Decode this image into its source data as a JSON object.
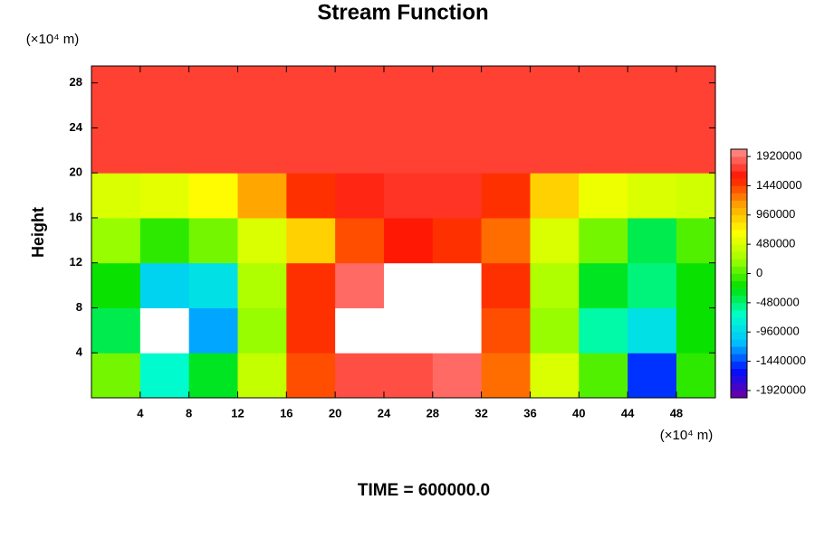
{
  "chart_data": {
    "type": "contour",
    "title": "Stream Function",
    "ylabel": "Height",
    "x_unit": "(×10⁴ m)",
    "y_unit": "(×10⁴ m)",
    "footer": "TIME = 600000.0",
    "xlim": [
      0,
      51.2
    ],
    "ylim": [
      0,
      29.5
    ],
    "xticks": [
      4,
      8,
      12,
      16,
      20,
      24,
      28,
      32,
      36,
      40,
      44,
      48
    ],
    "yticks": [
      4,
      8,
      12,
      16,
      20,
      24,
      28
    ],
    "x": [
      2,
      6,
      10,
      14,
      18,
      22,
      26,
      30,
      34,
      38,
      42,
      46,
      50
    ],
    "y": [
      2,
      6,
      10,
      14,
      18,
      22,
      26,
      30
    ],
    "z": [
      [
        100000,
        -700000,
        -300000,
        400000,
        1400000,
        1800000,
        1800000,
        1900000,
        1300000,
        500000,
        0,
        -1500000,
        -100000
      ],
      [
        -400000,
        -2300000,
        -1200000,
        200000,
        1500000,
        2500000,
        2400000,
        2500000,
        1400000,
        200000,
        -600000,
        -900000,
        -200000
      ],
      [
        -200000,
        -1000000,
        -900000,
        300000,
        1500000,
        1900000,
        2300000,
        2200000,
        1500000,
        300000,
        -300000,
        -500000,
        -200000
      ],
      [
        200000,
        -100000,
        100000,
        500000,
        900000,
        1400000,
        1600000,
        1500000,
        1300000,
        500000,
        100000,
        -400000,
        0
      ],
      [
        500000,
        550000,
        700000,
        1100000,
        1500000,
        1650000,
        1700000,
        1700000,
        1500000,
        900000,
        600000,
        500000,
        450000
      ],
      [
        1750000,
        1750000,
        1750000,
        1750000,
        1750000,
        1750000,
        1750000,
        1750000,
        1750000,
        1750000,
        1750000,
        1750000,
        1750000
      ],
      [
        1750000,
        1750000,
        1750000,
        1750000,
        1750000,
        1750000,
        1750000,
        1750000,
        1750000,
        1750000,
        1750000,
        1750000,
        1750000
      ],
      [
        1750000,
        1750000,
        1750000,
        1750000,
        1750000,
        1750000,
        1750000,
        1750000,
        1750000,
        1750000,
        1750000,
        1750000,
        1750000
      ]
    ],
    "zlim": [
      -2040000,
      2040000
    ],
    "zticks": [
      -1920000,
      -1440000,
      -960000,
      -480000,
      0,
      480000,
      960000,
      1440000,
      1920000
    ],
    "colorscale": [
      "#7000a0",
      "#0010ff",
      "#00c0ff",
      "#00ffcc",
      "#00e000",
      "#a0ff00",
      "#ffff00",
      "#ffa000",
      "#ff1500",
      "#ff9090"
    ],
    "out_of_range_color": "#ffffff"
  }
}
